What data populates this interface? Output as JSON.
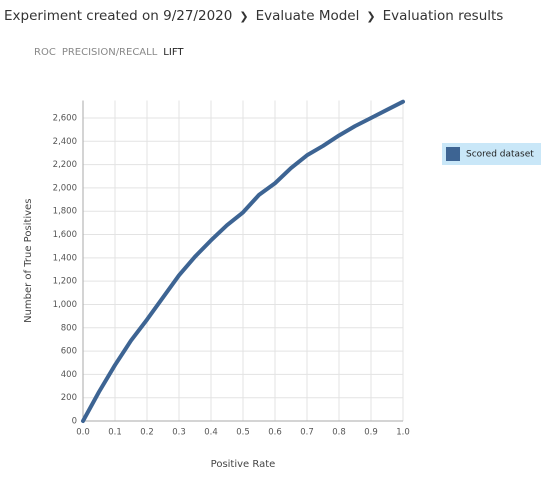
{
  "breadcrumb": [
    "Experiment created on 9/27/2020",
    "Evaluate Model",
    "Evaluation results"
  ],
  "tabs": [
    "ROC",
    "PRECISION/RECALL",
    "LIFT"
  ],
  "chart_data": {
    "type": "line",
    "x": [
      0,
      0.05,
      0.1,
      0.15,
      0.2,
      0.25,
      0.3,
      0.35,
      0.4,
      0.45,
      0.5,
      0.55,
      0.6,
      0.65,
      0.7,
      0.75,
      0.8,
      0.85,
      0.9,
      0.95,
      1
    ],
    "series": [
      {
        "name": "Scored dataset",
        "color": "#3d6493",
        "values": [
          0,
          250,
          480,
          690,
          870,
          1060,
          1250,
          1410,
          1550,
          1680,
          1790,
          1940,
          2040,
          2170,
          2280,
          2360,
          2450,
          2530,
          2600,
          2670,
          2740
        ]
      }
    ],
    "xlabel": "Positive Rate",
    "ylabel": "Number of True Positives",
    "xlim": [
      0,
      1
    ],
    "ylim": [
      0,
      2750
    ],
    "xticks": [
      {
        "value": 0,
        "label": "0.0"
      },
      0.1,
      0.2,
      0.3,
      0.4,
      0.5,
      0.6,
      0.7,
      0.8,
      0.9,
      {
        "value": 1,
        "label": "1.0"
      }
    ],
    "yticks": [
      0,
      200,
      400,
      600,
      800,
      {
        "value": 1000,
        "label": "1,000"
      },
      {
        "value": 1200,
        "label": "1,200"
      },
      {
        "value": 1400,
        "label": "1,400"
      },
      {
        "value": 1600,
        "label": "1,600"
      },
      {
        "value": 1800,
        "label": "1,800"
      },
      {
        "value": 2000,
        "label": "2,000"
      },
      {
        "value": 2200,
        "label": "2,200"
      },
      {
        "value": 2400,
        "label": "2,400"
      },
      {
        "value": 2600,
        "label": "2,600"
      }
    ],
    "grid": true,
    "legend": "right"
  }
}
